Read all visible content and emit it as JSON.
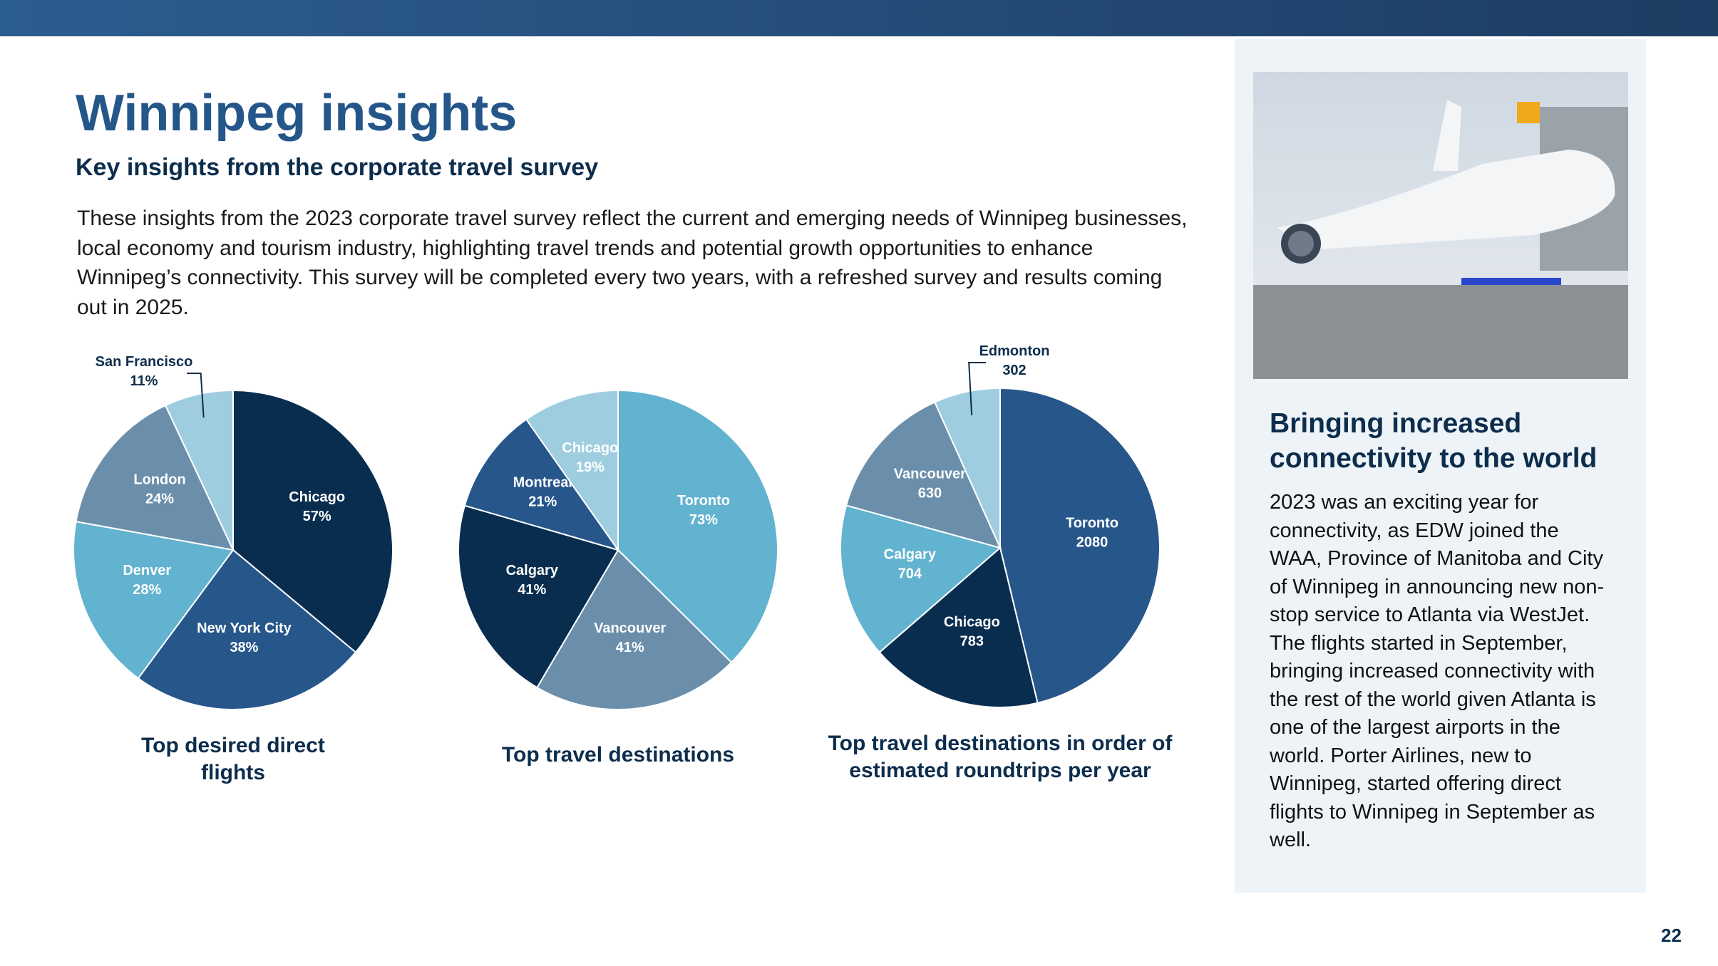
{
  "header": {
    "title": "Winnipeg insights",
    "subtitle": "Key insights from the corporate travel survey"
  },
  "intro": "These insights from the 2023 corporate travel survey reflect the current and emerging needs of Winnipeg businesses, local economy and tourism industry, highlighting travel trends and potential growth opportunities to enhance Winnipeg’s connectivity. This survey will be completed every two years, with a refreshed survey and results coming out in 2025.",
  "sidebar": {
    "heading": "Bringing increased connectivity to the world",
    "body": "2023 was an exciting year for connectivity, as EDW joined the WAA, Province of Manitoba and City of Winnipeg in announcing new non-stop service to Atlanta via WestJet. The flights started in September, bringing increased connectivity with the rest of the world given Atlanta is one of the largest airports in the world. Porter Airlines, new to Winnipeg, started offering direct flights to Winnipeg in September as well."
  },
  "page_number": "22",
  "chart_data": [
    {
      "type": "pie",
      "title": "Top desired direct flights",
      "categories": [
        "Chicago",
        "New York City",
        "Denver",
        "London",
        "San Francisco"
      ],
      "values": [
        57,
        38,
        28,
        24,
        11
      ],
      "value_labels": [
        "57%",
        "38%",
        "28%",
        "24%",
        "11%"
      ],
      "colors": [
        "#082d4f",
        "#27568a",
        "#62b3d0",
        "#6b8fab",
        "#9fcde0"
      ]
    },
    {
      "type": "pie",
      "title": "Top travel destinations",
      "categories": [
        "Toronto",
        "Vancouver",
        "Calgary",
        "Montreal",
        "Chicago"
      ],
      "values": [
        73,
        41,
        41,
        21,
        19
      ],
      "value_labels": [
        "73%",
        "41%",
        "41%",
        "21%",
        "19%"
      ],
      "colors": [
        "#62b3d0",
        "#6b8fab",
        "#082d4f",
        "#27568a",
        "#9fcde0"
      ]
    },
    {
      "type": "pie",
      "title": "Top travel destinations in order of estimated roundtrips per year",
      "categories": [
        "Toronto",
        "Chicago",
        "Calgary",
        "Vancouver",
        "Edmonton"
      ],
      "values": [
        2080,
        783,
        704,
        630,
        302
      ],
      "colors": [
        "#27568a",
        "#082d4f",
        "#62b3d0",
        "#6b8fab",
        "#9fcde0"
      ]
    }
  ]
}
